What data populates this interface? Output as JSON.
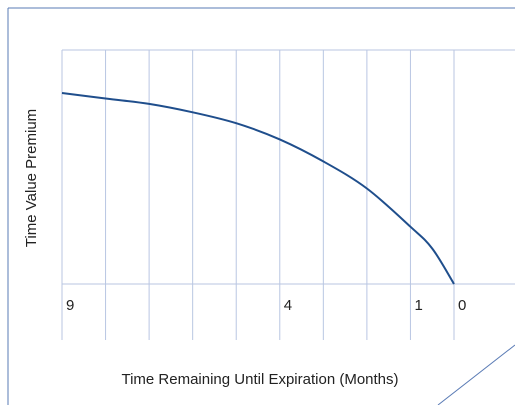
{
  "chart_data": {
    "type": "line",
    "title": "",
    "xlabel": "Time Remaining Until Expiration (Months)",
    "ylabel": "Time Value Premium",
    "x_reversed": true,
    "xlim": [
      9,
      0
    ],
    "x_tick_labels": [
      {
        "value": 9,
        "label": "9"
      },
      {
        "value": 4,
        "label": "4"
      },
      {
        "value": 1,
        "label": "1"
      },
      {
        "value": 0,
        "label": "0"
      }
    ],
    "gridline_months": [
      9,
      8,
      7,
      6,
      5,
      4,
      3,
      2,
      1,
      0
    ],
    "y_tick_labels": [],
    "grid": true,
    "series": [
      {
        "x": [
          9,
          8,
          7,
          6,
          5,
          4,
          3,
          2,
          1,
          0.5,
          0
        ],
        "y": [
          1.0,
          0.971,
          0.943,
          0.899,
          0.842,
          0.757,
          0.642,
          0.5,
          0.3,
          0.186,
          0.0
        ]
      }
    ]
  },
  "colors": {
    "curve": "#1f4e8c",
    "grid": "#b9c6e2",
    "frame": "#5a7bb5",
    "text": "#222222"
  }
}
